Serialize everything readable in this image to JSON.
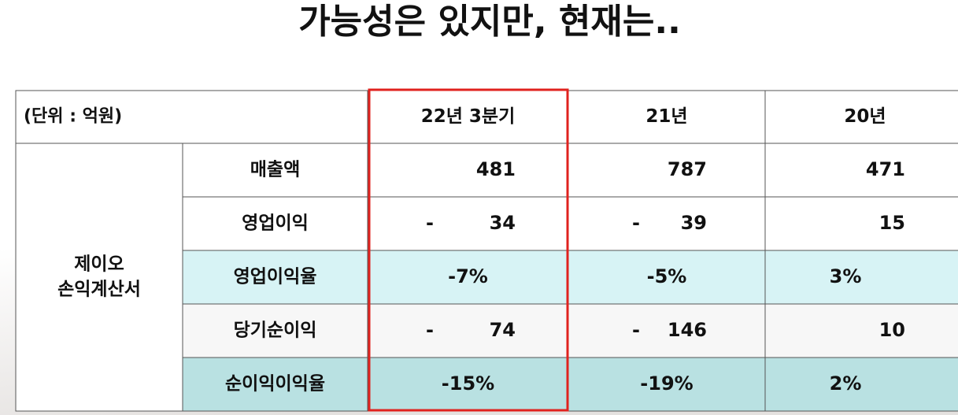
{
  "title": "가능성은 있지만, 현재는..",
  "table": {
    "header": {
      "unit": "(단위 : 억원)",
      "columns": [
        "22년 3분기",
        "21년",
        "20년"
      ]
    },
    "group_label": [
      "제이오",
      "손익계산서"
    ],
    "rows": [
      {
        "label": "매출액",
        "cells": [
          {
            "value": "481"
          },
          {
            "value": "787"
          },
          {
            "value": "471"
          }
        ]
      },
      {
        "label": "영업이익",
        "cells": [
          {
            "sign": "-",
            "value": "34"
          },
          {
            "sign": "-",
            "value": "39"
          },
          {
            "value": "15"
          }
        ]
      },
      {
        "label": "영업이익율",
        "cells": [
          {
            "value": "-7%"
          },
          {
            "value": "-5%"
          },
          {
            "value": "3%"
          }
        ]
      },
      {
        "label": "당기순이익",
        "cells": [
          {
            "sign": "-",
            "value": "74"
          },
          {
            "sign": "-",
            "value": "146"
          },
          {
            "value": "10"
          }
        ]
      },
      {
        "label": "순이익이익율",
        "cells": [
          {
            "value": "-15%"
          },
          {
            "value": "-19%"
          },
          {
            "value": "2%"
          }
        ]
      }
    ]
  }
}
